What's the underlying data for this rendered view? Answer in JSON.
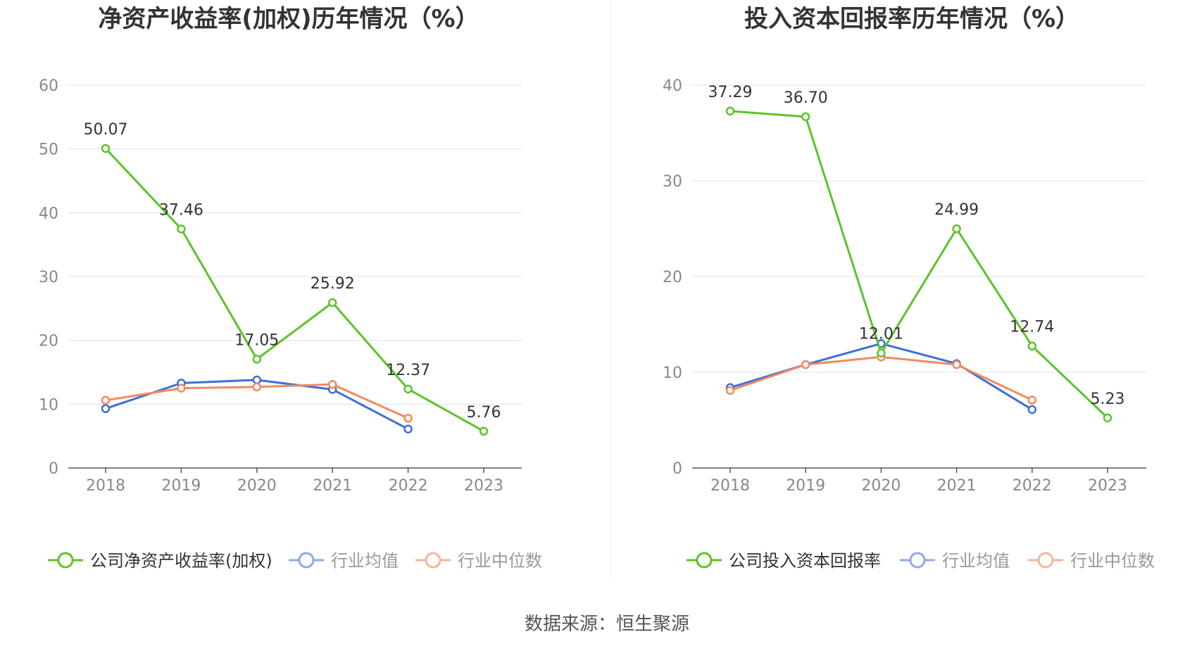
{
  "source_text": "数据来源：恒生聚源",
  "colors": {
    "company": "#5cc32a",
    "avg": "#3e6fd8",
    "median": "#f28a5e",
    "grid": "#dde1ef",
    "axis": "#555555"
  },
  "chart_data": [
    {
      "type": "line",
      "title": "净资产收益率(加权)历年情况（%）",
      "xlabel": "",
      "ylabel": "",
      "categories": [
        "2018",
        "2019",
        "2020",
        "2021",
        "2022",
        "2023"
      ],
      "ylim": [
        0,
        60
      ],
      "yticks": [
        "0",
        "10",
        "20",
        "30",
        "40",
        "50",
        "60"
      ],
      "grid": true,
      "legend_position": "bottom",
      "series": [
        {
          "name": "公司净资产收益率(加权)",
          "key": "company",
          "values": [
            50.07,
            37.46,
            17.05,
            25.92,
            12.37,
            5.76
          ],
          "labels": [
            "50.07",
            "37.46",
            "17.05",
            "25.92",
            "12.37",
            "5.76"
          ]
        },
        {
          "name": "行业均值",
          "key": "avg",
          "values": [
            9.3,
            13.3,
            13.8,
            12.3,
            6.1,
            null
          ]
        },
        {
          "name": "行业中位数",
          "key": "median",
          "values": [
            10.6,
            12.5,
            12.7,
            13.1,
            7.8,
            null
          ]
        }
      ]
    },
    {
      "type": "line",
      "title": "投入资本回报率历年情况（%）",
      "xlabel": "",
      "ylabel": "",
      "categories": [
        "2018",
        "2019",
        "2020",
        "2021",
        "2022",
        "2023"
      ],
      "ylim": [
        0,
        40
      ],
      "yticks": [
        "0",
        "10",
        "20",
        "30",
        "40"
      ],
      "grid": true,
      "legend_position": "bottom",
      "series": [
        {
          "name": "公司投入资本回报率",
          "key": "company",
          "values": [
            37.29,
            36.7,
            12.01,
            24.99,
            12.74,
            5.23
          ],
          "labels": [
            "37.29",
            "36.70",
            "12.01",
            "24.99",
            "12.74",
            "5.23"
          ]
        },
        {
          "name": "行业均值",
          "key": "avg",
          "values": [
            8.4,
            10.8,
            13.0,
            10.9,
            6.1,
            null
          ]
        },
        {
          "name": "行业中位数",
          "key": "median",
          "values": [
            8.1,
            10.8,
            11.6,
            10.8,
            7.1,
            null
          ]
        }
      ]
    }
  ]
}
